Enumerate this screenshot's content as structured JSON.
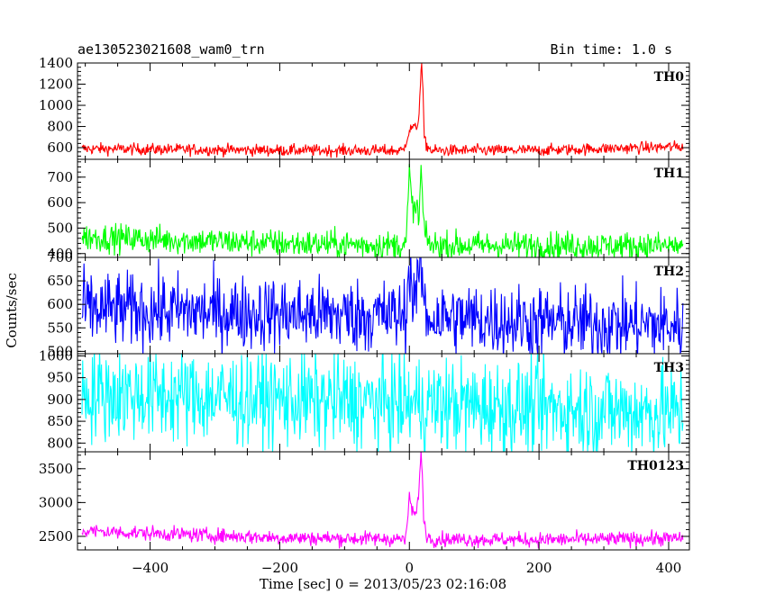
{
  "chart_data": {
    "type": "line",
    "title_left": "ae130523021608_wam0_trn",
    "title_right": "Bin time: 1.0 s",
    "xlabel": "Time [sec] 0 = 2013/05/23 02:16:08",
    "ylabel": "Counts/sec",
    "xlim": [
      -512,
      432
    ],
    "x_range": [
      -505,
      422
    ],
    "bin_time": 1.0,
    "x_ticks": [
      -400,
      -200,
      0,
      200,
      400
    ],
    "grid": false,
    "panels": [
      {
        "name": "TH0",
        "color": "#ff0000",
        "ylim": [
          490,
          1400
        ],
        "y_ticks": [
          600,
          800,
          1000,
          1200,
          1400
        ],
        "baseline": [
          [
            -505,
            590
          ],
          [
            -200,
            575
          ],
          [
            0,
            572
          ],
          [
            200,
            575
          ],
          [
            422,
            610
          ]
        ],
        "noise": 28,
        "burst": [
          [
            -8,
            600
          ],
          [
            0,
            760
          ],
          [
            5,
            800
          ],
          [
            10,
            780
          ],
          [
            14,
            850
          ],
          [
            17,
            1200
          ],
          [
            19,
            1400
          ],
          [
            21,
            1100
          ],
          [
            23,
            700
          ],
          [
            26,
            620
          ],
          [
            32,
            590
          ]
        ]
      },
      {
        "name": "TH1",
        "color": "#00ff00",
        "ylim": [
          385,
          770
        ],
        "y_ticks": [
          400,
          500,
          600,
          700
        ],
        "baseline": [
          [
            -505,
            465
          ],
          [
            -200,
            440
          ],
          [
            0,
            432
          ],
          [
            200,
            432
          ],
          [
            422,
            430
          ]
        ],
        "noise": 28,
        "burst": [
          [
            -5,
            440
          ],
          [
            0,
            720
          ],
          [
            3,
            620
          ],
          [
            8,
            560
          ],
          [
            12,
            590
          ],
          [
            15,
            520
          ],
          [
            18,
            750
          ],
          [
            21,
            560
          ],
          [
            25,
            460
          ],
          [
            32,
            440
          ]
        ]
      },
      {
        "name": "TH2",
        "color": "#0000ff",
        "ylim": [
          495,
          700
        ],
        "y_ticks": [
          500,
          550,
          600,
          650,
          700
        ],
        "baseline": [
          [
            -505,
            590
          ],
          [
            -200,
            580
          ],
          [
            0,
            575
          ],
          [
            200,
            562
          ],
          [
            422,
            555
          ]
        ],
        "noise": 40,
        "burst": [
          [
            -5,
            580
          ],
          [
            0,
            690
          ],
          [
            5,
            615
          ],
          [
            12,
            640
          ],
          [
            18,
            680
          ],
          [
            24,
            590
          ]
        ]
      },
      {
        "name": "TH3",
        "color": "#00ffff",
        "ylim": [
          780,
          1005
        ],
        "y_ticks": [
          800,
          850,
          900,
          950,
          1000
        ],
        "baseline": [
          [
            -505,
            915
          ],
          [
            -200,
            900
          ],
          [
            0,
            890
          ],
          [
            200,
            880
          ],
          [
            422,
            870
          ]
        ],
        "noise": 55,
        "burst": []
      },
      {
        "name": "TH0123",
        "color": "#ff00ff",
        "ylim": [
          2300,
          3750
        ],
        "y_ticks": [
          2500,
          3000,
          3500
        ],
        "baseline": [
          [
            -505,
            2580
          ],
          [
            -200,
            2480
          ],
          [
            0,
            2460
          ],
          [
            200,
            2450
          ],
          [
            422,
            2470
          ]
        ],
        "noise": 55,
        "burst": [
          [
            -5,
            2470
          ],
          [
            0,
            3100
          ],
          [
            4,
            2900
          ],
          [
            8,
            2800
          ],
          [
            12,
            2900
          ],
          [
            15,
            3300
          ],
          [
            18,
            3700
          ],
          [
            20,
            3400
          ],
          [
            22,
            2800
          ],
          [
            26,
            2520
          ],
          [
            34,
            2460
          ]
        ]
      }
    ]
  }
}
